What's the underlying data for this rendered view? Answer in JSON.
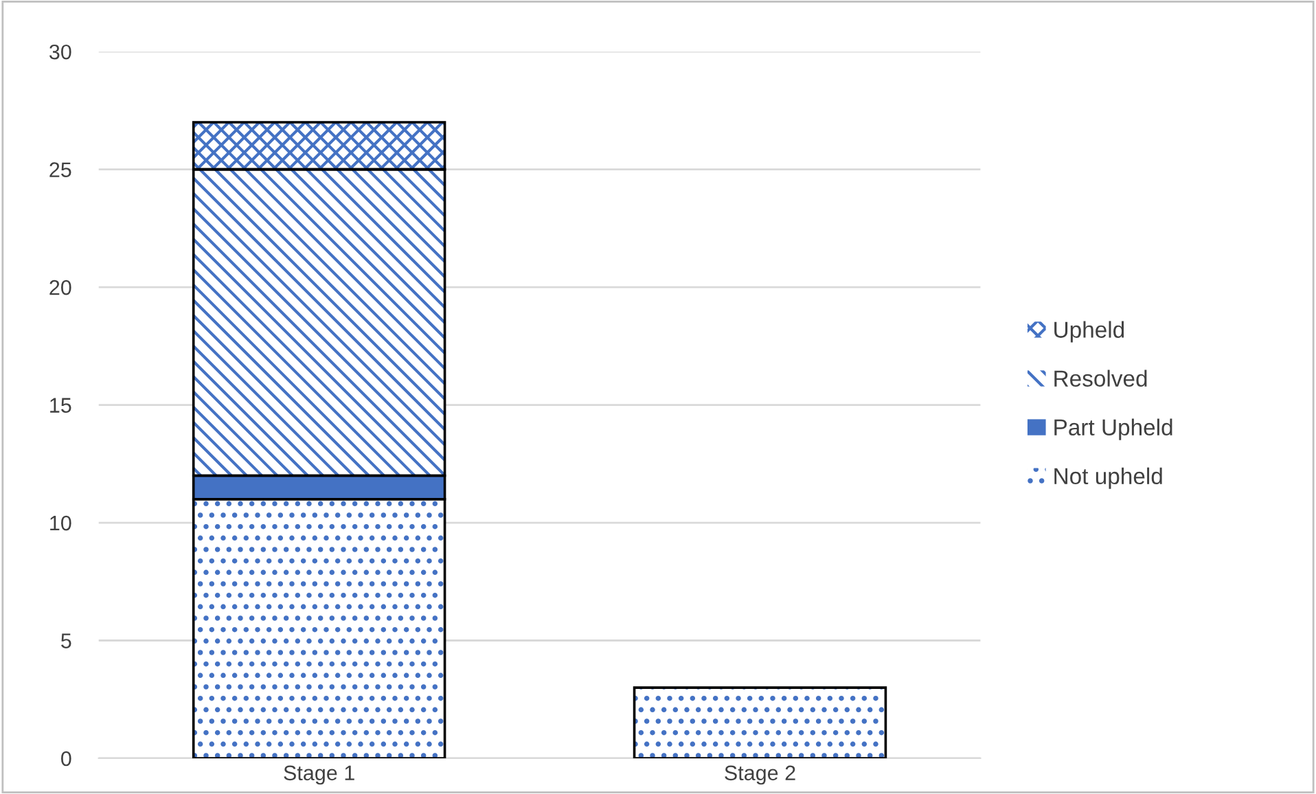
{
  "chart_data": {
    "type": "bar",
    "stacked": true,
    "categories": [
      "Stage 1",
      "Stage 2"
    ],
    "series": [
      {
        "name": "Not upheld",
        "color": "#4472c4",
        "values": [
          11,
          3
        ]
      },
      {
        "name": "Part Upheld",
        "color": "#4472c4",
        "values": [
          1,
          null
        ]
      },
      {
        "name": "Resolved",
        "color": "#4472c4",
        "values": [
          13,
          null
        ]
      },
      {
        "name": "Upheld",
        "color": "#4472c4",
        "values": [
          2,
          null
        ]
      }
    ],
    "ylim": [
      0,
      30
    ],
    "yticks": [
      0,
      5,
      10,
      15,
      20,
      25,
      30
    ],
    "grid": "y",
    "legend": "right"
  }
}
